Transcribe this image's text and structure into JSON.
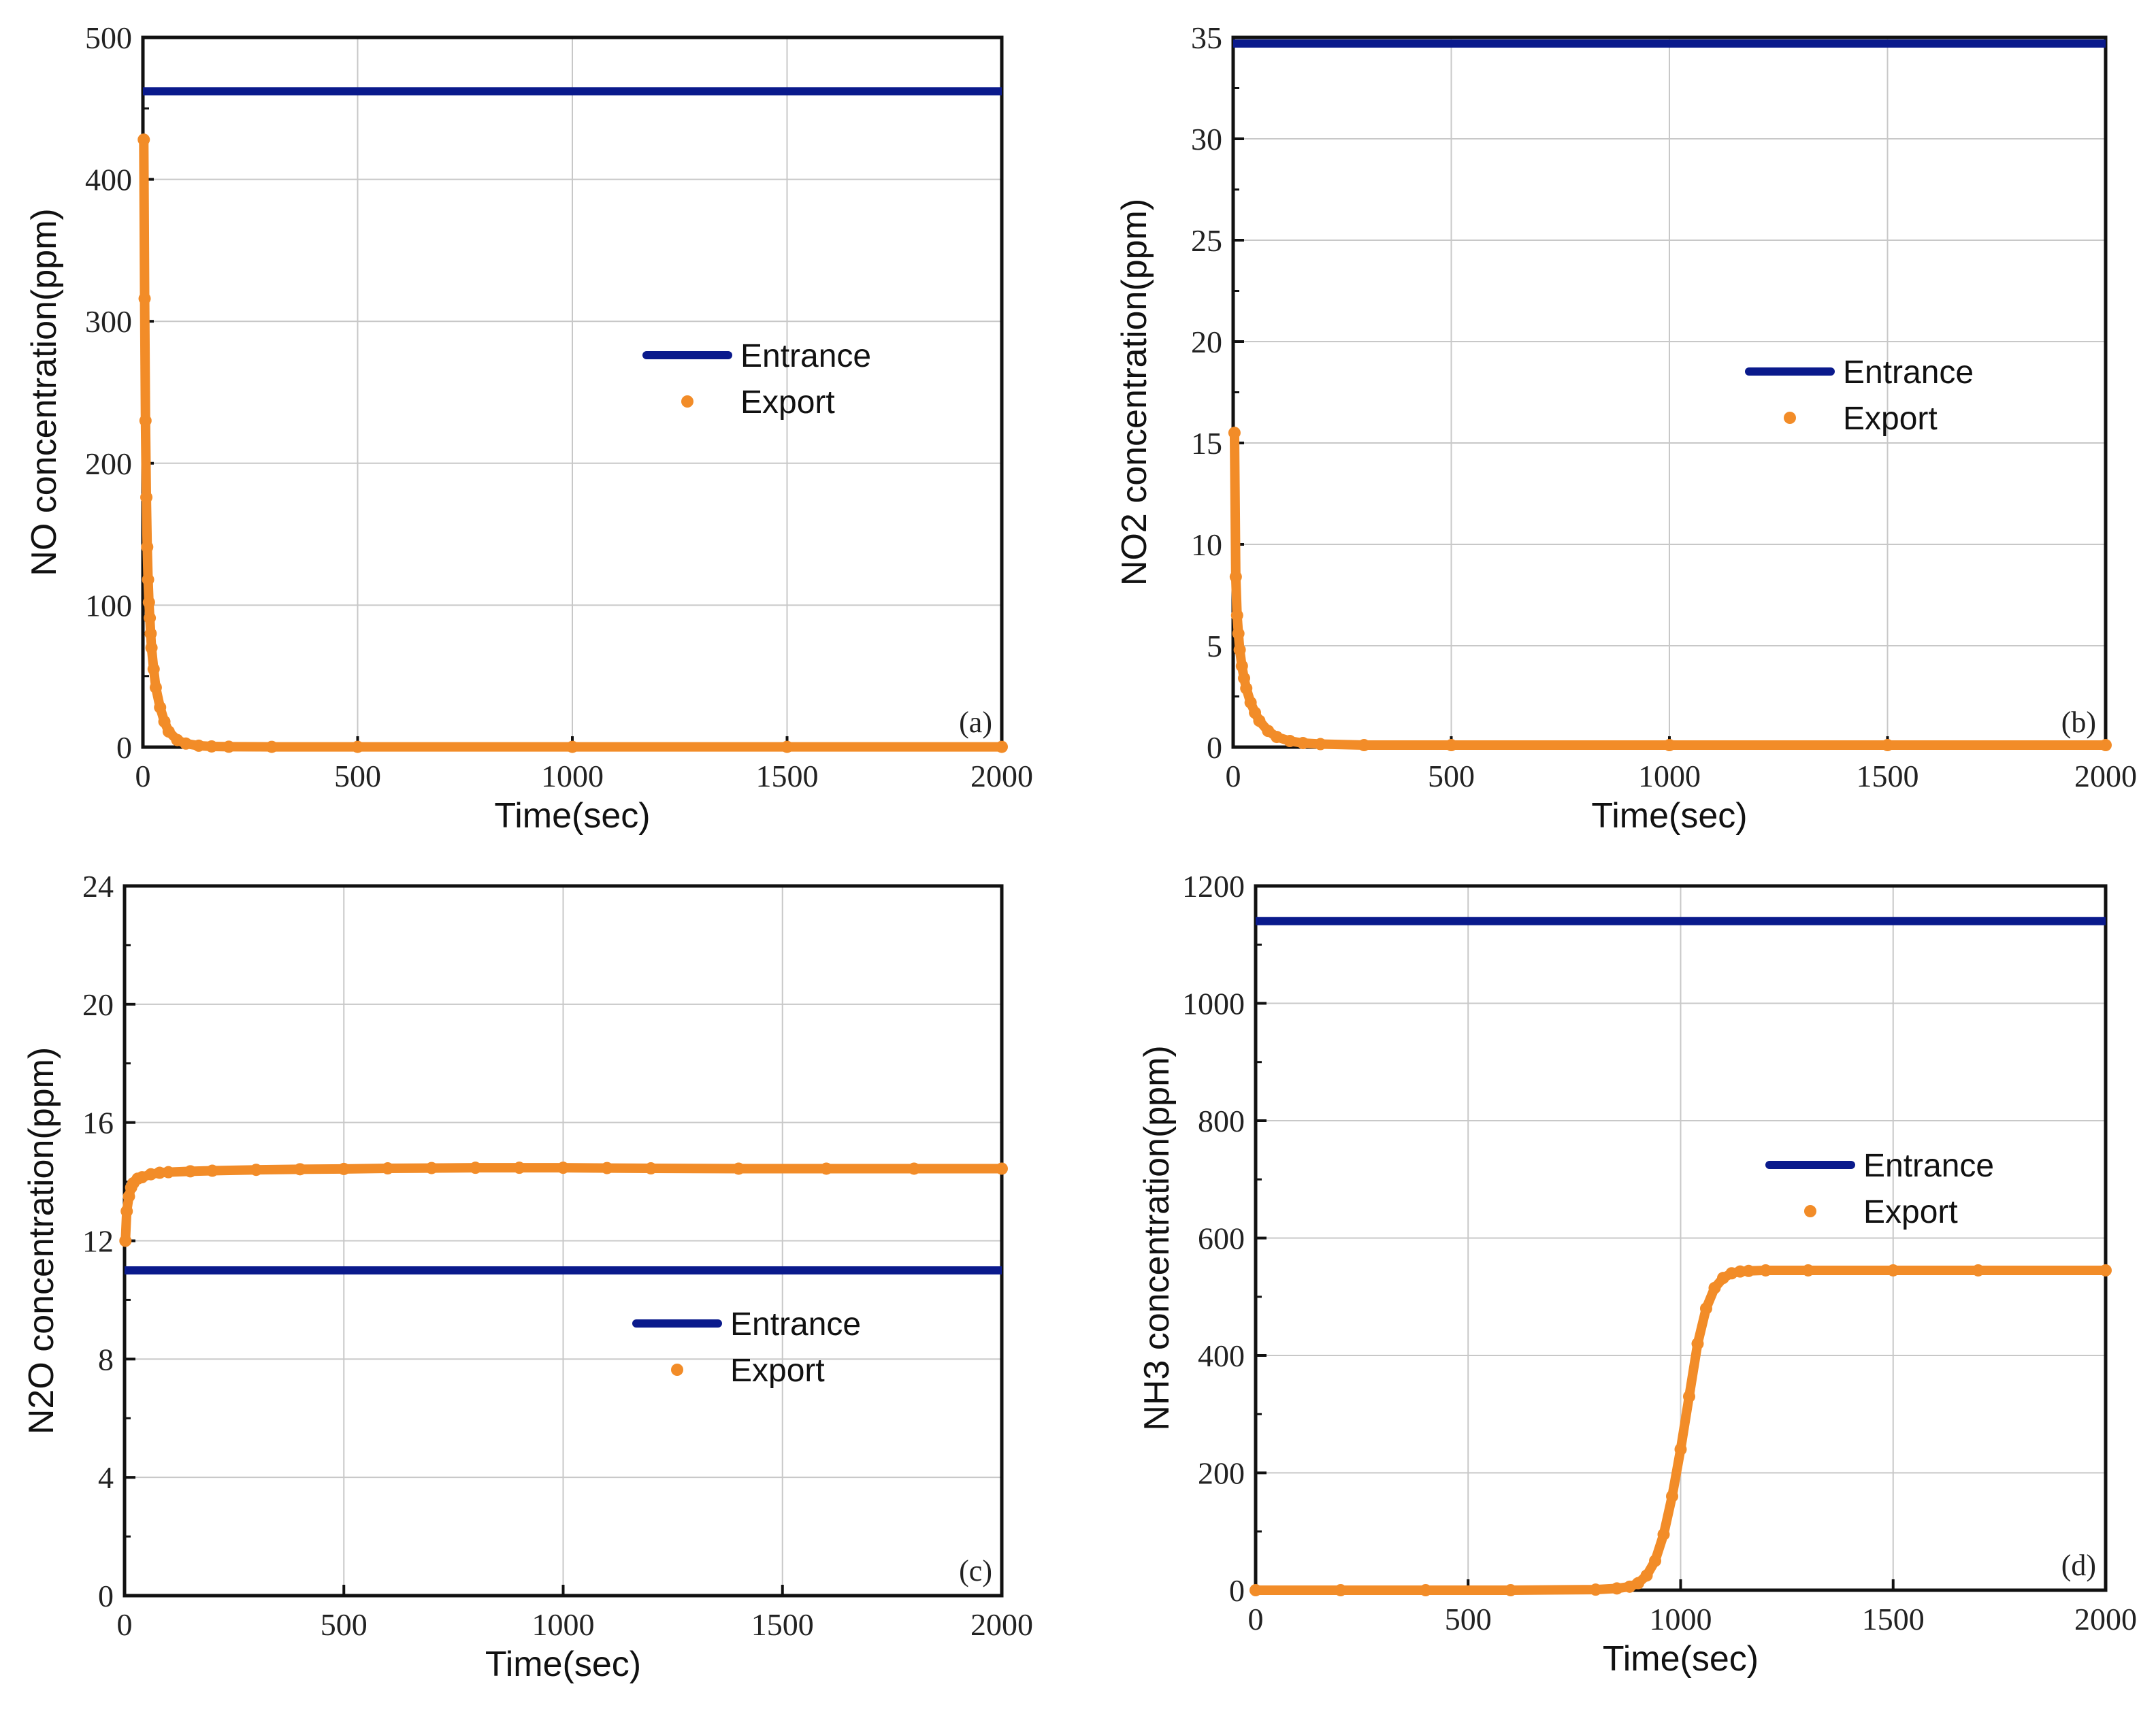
{
  "figure": {
    "background": "#ffffff",
    "panel_count": 4
  },
  "chart_data": [
    {
      "id": "a",
      "type": "line",
      "panel_label": "(a)",
      "xlabel": "Time(sec)",
      "ylabel": "NO concentration(ppm)",
      "xlim": [
        0,
        2000
      ],
      "ylim": [
        0,
        500
      ],
      "xticks": [
        0,
        500,
        1000,
        1500,
        2000
      ],
      "yticks": [
        0,
        100,
        200,
        300,
        400,
        500
      ],
      "grid": true,
      "legend_position": "center-right",
      "series": [
        {
          "name": "Entrance",
          "style": "line",
          "color": "#0a1a8c",
          "x": [
            0,
            2000
          ],
          "y": [
            462,
            462
          ]
        },
        {
          "name": "Export",
          "style": "markers",
          "color": "#f28c28",
          "x": [
            2,
            4,
            6,
            8,
            10,
            12,
            14,
            16,
            18,
            20,
            25,
            30,
            40,
            50,
            60,
            80,
            100,
            130,
            160,
            200,
            300,
            500,
            1000,
            1500,
            2000
          ],
          "y": [
            428,
            316,
            230,
            176,
            141,
            118,
            102,
            91,
            80,
            70,
            55,
            42,
            28,
            18,
            11,
            5,
            2.5,
            1,
            0.5,
            0.3,
            0.2,
            0.2,
            0.2,
            0.2,
            0.2
          ]
        }
      ]
    },
    {
      "id": "b",
      "type": "line",
      "panel_label": "(b)",
      "xlabel": "Time(sec)",
      "ylabel": "NO2 concentration(ppm)",
      "xlim": [
        0,
        2000
      ],
      "ylim": [
        0,
        35
      ],
      "xticks": [
        0,
        500,
        1000,
        1500,
        2000
      ],
      "yticks": [
        0,
        5,
        10,
        15,
        20,
        25,
        30,
        35
      ],
      "grid": true,
      "legend_position": "center-right",
      "series": [
        {
          "name": "Entrance",
          "style": "line",
          "color": "#0a1a8c",
          "x": [
            0,
            2000
          ],
          "y": [
            34.7,
            34.7
          ]
        },
        {
          "name": "Export",
          "style": "markers",
          "color": "#f28c28",
          "x": [
            3,
            6,
            9,
            12,
            15,
            20,
            25,
            30,
            40,
            50,
            60,
            80,
            100,
            130,
            160,
            200,
            300,
            500,
            1000,
            1500,
            2000
          ],
          "y": [
            15.5,
            8.4,
            6.5,
            5.6,
            4.8,
            4.0,
            3.4,
            2.9,
            2.2,
            1.7,
            1.3,
            0.8,
            0.5,
            0.3,
            0.2,
            0.15,
            0.1,
            0.1,
            0.1,
            0.1,
            0.1
          ]
        }
      ]
    },
    {
      "id": "c",
      "type": "line",
      "panel_label": "(c)",
      "xlabel": "Time(sec)",
      "ylabel": "N2O concentration(ppm)",
      "xlim": [
        0,
        2000
      ],
      "ylim": [
        0,
        24
      ],
      "xticks": [
        0,
        500,
        1000,
        1500,
        2000
      ],
      "yticks": [
        0,
        4,
        8,
        12,
        16,
        20,
        24
      ],
      "grid": true,
      "legend_position": "lower-right",
      "series": [
        {
          "name": "Entrance",
          "style": "line",
          "color": "#0a1a8c",
          "x": [
            0,
            2000
          ],
          "y": [
            11.0,
            11.0
          ]
        },
        {
          "name": "Export",
          "style": "markers",
          "color": "#f28c28",
          "x": [
            2,
            5,
            10,
            15,
            20,
            30,
            40,
            60,
            80,
            100,
            150,
            200,
            300,
            400,
            500,
            600,
            700,
            800,
            900,
            1000,
            1100,
            1200,
            1400,
            1600,
            1800,
            2000
          ],
          "y": [
            12.0,
            13.0,
            13.5,
            13.8,
            13.95,
            14.1,
            14.15,
            14.25,
            14.3,
            14.32,
            14.35,
            14.37,
            14.4,
            14.42,
            14.43,
            14.45,
            14.46,
            14.47,
            14.47,
            14.47,
            14.46,
            14.45,
            14.44,
            14.44,
            14.44,
            14.44
          ]
        }
      ]
    },
    {
      "id": "d",
      "type": "line",
      "panel_label": "(d)",
      "xlabel": "Time(sec)",
      "ylabel": "NH3 concentration(ppm)",
      "xlim": [
        0,
        2000
      ],
      "ylim": [
        0,
        1200
      ],
      "xticks": [
        0,
        500,
        1000,
        1500,
        2000
      ],
      "yticks": [
        0,
        200,
        400,
        600,
        800,
        1000,
        1200
      ],
      "grid": true,
      "legend_position": "center-right",
      "series": [
        {
          "name": "Entrance",
          "style": "line",
          "color": "#0a1a8c",
          "x": [
            0,
            2000
          ],
          "y": [
            1140,
            1140
          ]
        },
        {
          "name": "Export",
          "style": "markers",
          "color": "#f28c28",
          "x": [
            0,
            200,
            400,
            600,
            800,
            850,
            880,
            900,
            920,
            940,
            960,
            980,
            1000,
            1020,
            1040,
            1060,
            1080,
            1100,
            1120,
            1140,
            1160,
            1200,
            1300,
            1500,
            1700,
            2000
          ],
          "y": [
            0,
            0,
            0,
            0,
            1,
            3,
            6,
            12,
            25,
            50,
            95,
            160,
            240,
            330,
            420,
            480,
            515,
            532,
            540,
            543,
            544,
            545,
            545,
            545,
            545,
            545
          ]
        }
      ]
    }
  ]
}
